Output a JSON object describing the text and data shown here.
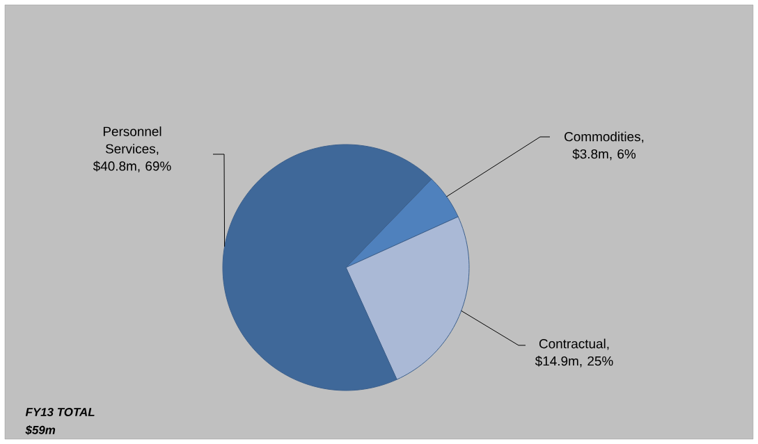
{
  "chart_data": {
    "type": "pie",
    "categories": [
      "Commodities",
      "Contractual",
      "Personnel Services"
    ],
    "values": [
      6,
      25,
      69
    ],
    "colors": [
      "#4f81bd",
      "#aab9d6",
      "#3f6899"
    ],
    "value_labels": [
      ", $3.8m, 6%",
      ", $14.9m, 25%",
      ", $40.8m, 69%"
    ],
    "annotations": [
      "FY13 TOTAL",
      "$59m"
    ]
  }
}
